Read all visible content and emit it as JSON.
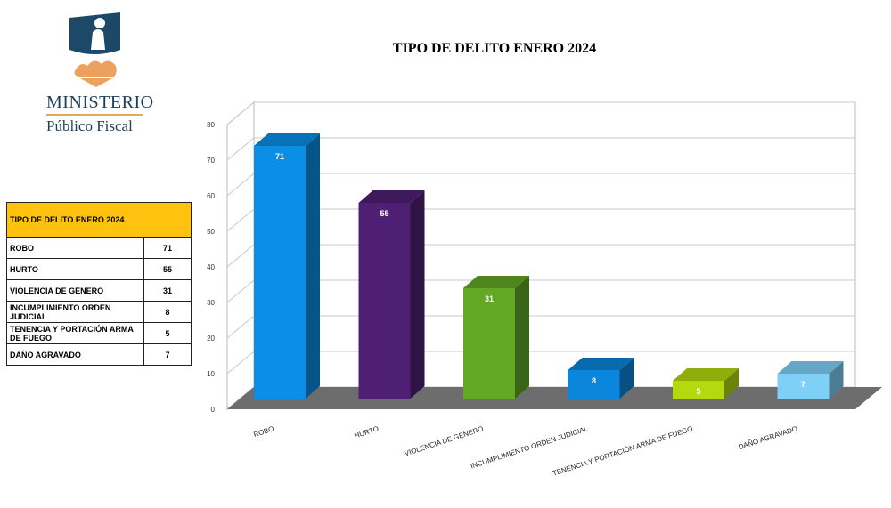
{
  "brand": {
    "line1": "MINISTERIO",
    "line2": "Público Fiscal"
  },
  "table": {
    "header": "TIPO DE DELITO ENERO 2024",
    "rows": [
      {
        "label": "ROBO",
        "value": "71"
      },
      {
        "label": "HURTO",
        "value": "55"
      },
      {
        "label": "VIOLENCIA DE GENERO",
        "value": "31"
      },
      {
        "label": "INCUMPLIMIENTO ORDEN JUDICIAL",
        "value": "8"
      },
      {
        "label": "TENENCIA Y PORTACIÓN ARMA DE FUEGO",
        "value": "5"
      },
      {
        "label": "DAÑO AGRAVADO",
        "value": "7"
      }
    ]
  },
  "chart_data": {
    "type": "bar",
    "title": "TIPO DE DELITO ENERO 2024",
    "categories": [
      "ROBO",
      "HURTO",
      "VIOLENCIA DE GENERO",
      "INCUMPLIMIENTO ORDEN JUDICIAL",
      "TENENCIA Y PORTACIÓN ARMA DE FUEGO",
      "DAÑO AGRAVADO"
    ],
    "values": [
      71,
      55,
      31,
      8,
      5,
      7
    ],
    "ylim": [
      0,
      80
    ],
    "yticks": [
      0,
      10,
      20,
      30,
      40,
      50,
      60,
      70,
      80
    ],
    "grid": true,
    "style": "3d",
    "colors": [
      "#0a8ee6",
      "#4e1f73",
      "#62a824",
      "#0a86dc",
      "#b5d80e",
      "#7fd0f7"
    ]
  }
}
